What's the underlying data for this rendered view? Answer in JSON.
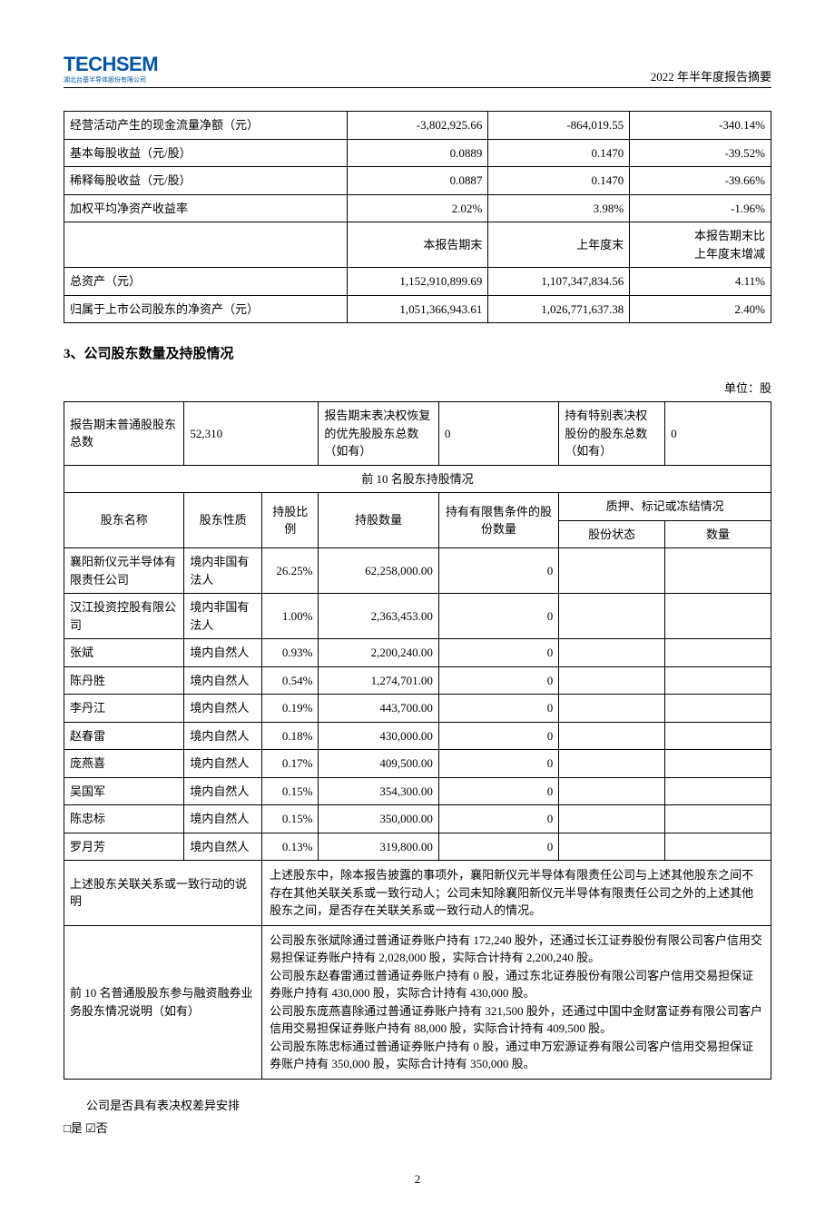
{
  "header": {
    "logo_main": "TECHSEM",
    "logo_sub": "湖北台基半导体股份有限公司",
    "right": "2022 年半年度报告摘要"
  },
  "fin_table": {
    "rows": [
      {
        "label": "经营活动产生的现金流量净额（元）",
        "a": "-3,802,925.66",
        "b": "-864,019.55",
        "c": "-340.14%"
      },
      {
        "label": "基本每股收益（元/股）",
        "a": "0.0889",
        "b": "0.1470",
        "c": "-39.52%"
      },
      {
        "label": "稀释每股收益（元/股）",
        "a": "0.0887",
        "b": "0.1470",
        "c": "-39.66%"
      },
      {
        "label": "加权平均净资产收益率",
        "a": "2.02%",
        "b": "3.98%",
        "c": "-1.96%"
      }
    ],
    "mid_header": {
      "a": "本报告期末",
      "b": "上年度末",
      "c": "本报告期末比\n上年度末增减"
    },
    "rows2": [
      {
        "label": "总资产（元）",
        "a": "1,152,910,899.69",
        "b": "1,107,347,834.56",
        "c": "4.11%"
      },
      {
        "label": "归属于上市公司股东的净资产（元）",
        "a": "1,051,366,943.61",
        "b": "1,026,771,637.38",
        "c": "2.40%"
      }
    ]
  },
  "section3_title": "3、公司股东数量及持股情况",
  "unit": "单位：股",
  "sh_summary": {
    "l1": "报告期末普通股股东总数",
    "v1": "52,310",
    "l2": "报告期末表决权恢复的优先股股东总数（如有）",
    "v2": "0",
    "l3": "持有特别表决权股份的股东总数（如有）",
    "v3": "0"
  },
  "top10_title": "前 10 名股东持股情况",
  "sh_cols": {
    "c1": "股东名称",
    "c2": "股东性质",
    "c3": "持股比例",
    "c4": "持股数量",
    "c5": "持有有限售条件的股份数量",
    "c6": "质押、标记或冻结情况",
    "c6a": "股份状态",
    "c6b": "数量"
  },
  "shareholders": [
    {
      "name": "襄阳新仪元半导体有限责任公司",
      "nature": "境内非国有法人",
      "pct": "26.25%",
      "qty": "62,258,000.00",
      "restricted": "0"
    },
    {
      "name": "汉江投资控股有限公司",
      "nature": "境内非国有法人",
      "pct": "1.00%",
      "qty": "2,363,453.00",
      "restricted": "0"
    },
    {
      "name": "张斌",
      "nature": "境内自然人",
      "pct": "0.93%",
      "qty": "2,200,240.00",
      "restricted": "0"
    },
    {
      "name": "陈丹胜",
      "nature": "境内自然人",
      "pct": "0.54%",
      "qty": "1,274,701.00",
      "restricted": "0"
    },
    {
      "name": "李丹江",
      "nature": "境内自然人",
      "pct": "0.19%",
      "qty": "443,700.00",
      "restricted": "0"
    },
    {
      "name": "赵春雷",
      "nature": "境内自然人",
      "pct": "0.18%",
      "qty": "430,000.00",
      "restricted": "0"
    },
    {
      "name": "庞燕喜",
      "nature": "境内自然人",
      "pct": "0.17%",
      "qty": "409,500.00",
      "restricted": "0"
    },
    {
      "name": "吴国军",
      "nature": "境内自然人",
      "pct": "0.15%",
      "qty": "354,300.00",
      "restricted": "0"
    },
    {
      "name": "陈忠标",
      "nature": "境内自然人",
      "pct": "0.15%",
      "qty": "350,000.00",
      "restricted": "0"
    },
    {
      "name": "罗月芳",
      "nature": "境内自然人",
      "pct": "0.13%",
      "qty": "319,800.00",
      "restricted": "0"
    }
  ],
  "explain1_label": "上述股东关联关系或一致行动的说明",
  "explain1_text": "上述股东中，除本报告披露的事项外，襄阳新仪元半导体有限责任公司与上述其他股东之间不存在其他关联关系或一致行动人；公司未知除襄阳新仪元半导体有限责任公司之外的上述其他股东之间，是否存在关联关系或一致行动人的情况。",
  "explain2_label": "前 10 名普通股股东参与融资融券业务股东情况说明（如有）",
  "explain2_text": "公司股东张斌除通过普通证券账户持有 172,240 股外，还通过长江证券股份有限公司客户信用交易担保证券账户持有 2,028,000 股，实际合计持有 2,200,240 股。\n公司股东赵春雷通过普通证券账户持有 0 股，通过东北证券股份有限公司客户信用交易担保证券账户持有 430,000 股，实际合计持有 430,000 股。\n公司股东庞燕喜除通过普通证券账户持有 321,500 股外，还通过中国中金财富证券有限公司客户信用交易担保证券账户持有 88,000 股，实际合计持有 409,500 股。\n公司股东陈忠标通过普通证券账户持有 0 股，通过申万宏源证券有限公司客户信用交易担保证券账户持有 350,000 股，实际合计持有 350,000 股。",
  "post_q": "公司是否具有表决权差异安排",
  "post_a": "□是 ☑否",
  "page_num": "2",
  "col_widths": {
    "fin": [
      "40%",
      "20%",
      "20%",
      "20%"
    ],
    "sh": [
      "17%",
      "11%",
      "8%",
      "17%",
      "17%",
      "15%",
      "15%"
    ]
  }
}
